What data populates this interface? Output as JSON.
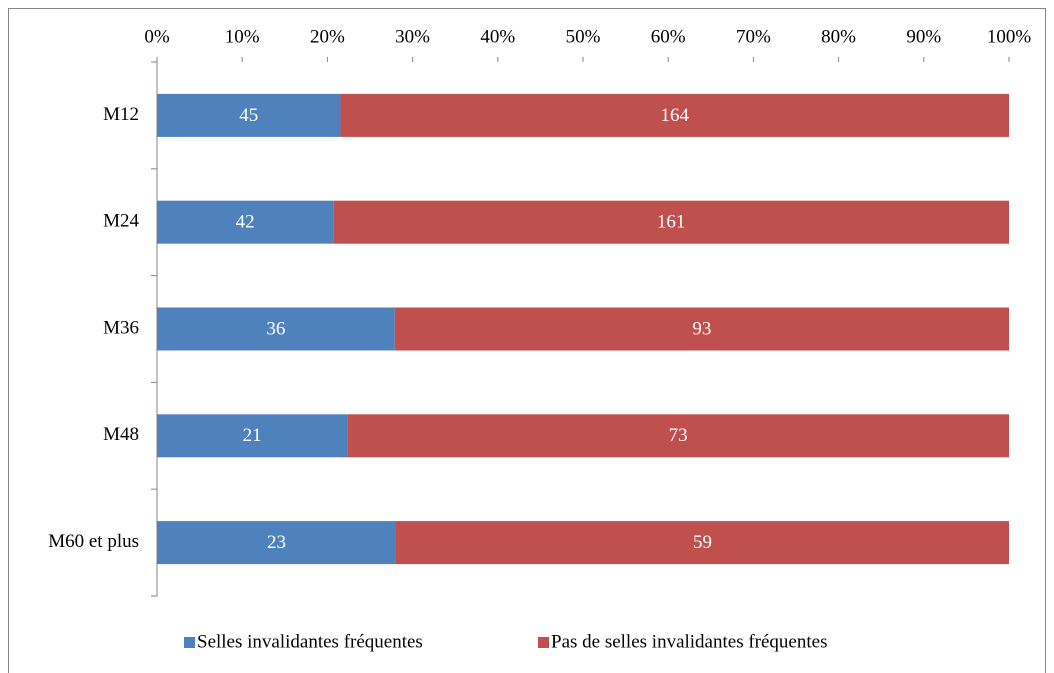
{
  "chart_data": {
    "type": "bar",
    "orientation": "horizontal",
    "stacking": "percent",
    "categories": [
      "M12",
      "M24",
      "M36",
      "M48",
      "M60 et plus"
    ],
    "series": [
      {
        "name": "Selles invalidantes fréquentes",
        "color": "#4f81bd",
        "values": [
          45,
          42,
          36,
          21,
          23
        ]
      },
      {
        "name": "Pas de selles invalidantes fréquentes",
        "color": "#c0504d",
        "values": [
          164,
          161,
          93,
          73,
          59
        ]
      }
    ],
    "xlim": [
      0,
      100
    ],
    "xticks": [
      {
        "value": 0,
        "label": "0%"
      },
      {
        "value": 10,
        "label": "10%"
      },
      {
        "value": 20,
        "label": "20%"
      },
      {
        "value": 30,
        "label": "30%"
      },
      {
        "value": 40,
        "label": "40%"
      },
      {
        "value": 50,
        "label": "50%"
      },
      {
        "value": 60,
        "label": "60%"
      },
      {
        "value": 70,
        "label": "70%"
      },
      {
        "value": 80,
        "label": "80%"
      },
      {
        "value": 90,
        "label": "90%"
      },
      {
        "value": 100,
        "label": "100%"
      }
    ],
    "legend": "bottom",
    "data_labels": true
  }
}
